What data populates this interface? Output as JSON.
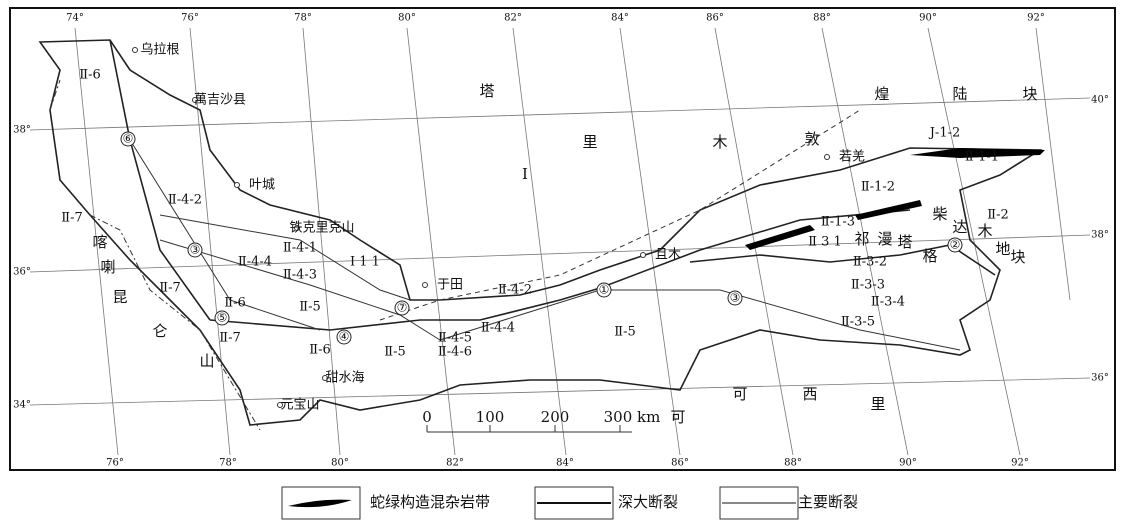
{
  "map": {
    "lon_top": [
      "74°",
      "76°",
      "78°",
      "80°",
      "82°",
      "84°",
      "86°",
      "88°",
      "90°",
      "92°"
    ],
    "lon_bottom": [
      "76°",
      "78°",
      "80°",
      "82°",
      "84°",
      "86°",
      "88°",
      "90°",
      "92°"
    ],
    "lat_left": [
      "38°",
      "36°",
      "34°"
    ],
    "lat_right": [
      "40°",
      "38°",
      "36°"
    ],
    "places": [
      "乌拉根",
      "萬吉沙县",
      "叶城",
      "铁克里克山",
      "于田",
      "且木",
      "若羌",
      "甜水海",
      "元宝山"
    ],
    "words": [
      "塔",
      "里",
      "木",
      "敦",
      "煌",
      "陆",
      "块",
      "Ⅰ",
      "柴",
      "达",
      "木",
      "地",
      "块",
      "祁",
      "漫",
      "塔",
      "格",
      "喀",
      "喇",
      "昆",
      "仑",
      "山",
      "可",
      "西",
      "里",
      "可"
    ],
    "units": [
      "Ⅱ-6",
      "Ⅱ-7",
      "Ⅱ-4-2",
      "Ⅱ-4-1",
      "Ⅱ-4-4",
      "Ⅱ-4-3",
      "Ⅰ 1 1",
      "Ⅱ-7",
      "Ⅱ-6",
      "Ⅱ-5",
      "Ⅱ-7",
      "Ⅱ-6",
      "Ⅱ-5",
      "Ⅱ-4-2",
      "Ⅱ-4-4",
      "Ⅱ-4-5",
      "Ⅱ-4-6",
      "Ⅱ-5",
      "Ⅱ-1-2",
      "Ⅱ-1-1",
      "Ј-1-2",
      "Ⅱ-1-3",
      "Ⅱ 3 1",
      "Ⅱ-2",
      "Ⅱ-3-2",
      "Ⅱ-3-3",
      "Ⅱ-3-4",
      "Ⅱ-3-5"
    ],
    "faults": [
      "⑥",
      "③",
      "⑤",
      "⑦",
      "④",
      "①",
      "③",
      "②"
    ],
    "scale": [
      "0",
      "100",
      "200",
      "300 km"
    ],
    "legend": [
      "蛇绿构造混杂岩带",
      "深大断裂",
      "主要断裂"
    ]
  }
}
